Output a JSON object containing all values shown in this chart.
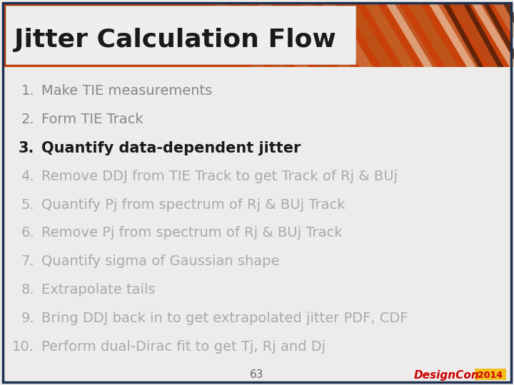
{
  "title": "Jitter Calculation Flow",
  "title_color": "#1a1a1a",
  "title_fontsize": 26,
  "background_color": "#edecea",
  "header_orange": "#c8400a",
  "header_stripe_light": "#d4b090",
  "header_stripe_dark": "#b83808",
  "border_color": "#1c3050",
  "title_box_color": "#f0eeec",
  "items": [
    {
      "num": "1.",
      "text": "Make TIE measurements",
      "bold": false,
      "color": "#888888",
      "fontsize": 14
    },
    {
      "num": "2.",
      "text": "Form TIE Track",
      "bold": false,
      "color": "#888888",
      "fontsize": 14
    },
    {
      "num": "3.",
      "text": "Quantify data-dependent jitter",
      "bold": true,
      "color": "#1a1a1a",
      "fontsize": 15
    },
    {
      "num": "4.",
      "text": "Remove DDJ from TIE Track to get Track of Rj & BUj",
      "bold": false,
      "color": "#aaaaaa",
      "fontsize": 14
    },
    {
      "num": "5.",
      "text": "Quantify Pj from spectrum of Rj & BUj Track",
      "bold": false,
      "color": "#aaaaaa",
      "fontsize": 14
    },
    {
      "num": "6.",
      "text": "Remove Pj from spectrum of Rj & BUj Track",
      "bold": false,
      "color": "#aaaaaa",
      "fontsize": 14
    },
    {
      "num": "7.",
      "text": "Quantify sigma of Gaussian shape",
      "bold": false,
      "color": "#aaaaaa",
      "fontsize": 14
    },
    {
      "num": "8.",
      "text": "Extrapolate tails",
      "bold": false,
      "color": "#aaaaaa",
      "fontsize": 14
    },
    {
      "num": "9.",
      "text": "Bring DDJ back in to get extrapolated jitter PDF, CDF",
      "bold": false,
      "color": "#aaaaaa",
      "fontsize": 14
    },
    {
      "num": "10.",
      "text": "Perform dual-Dirac fit to get Tj, Rj and Dj",
      "bold": false,
      "color": "#aaaaaa",
      "fontsize": 14
    }
  ],
  "page_number": "63",
  "page_num_color": "#666666",
  "page_num_fontsize": 11,
  "logo_design": "DesignCon",
  "logo_year": "2014",
  "logo_color": "#cc0000",
  "logo_year_bg": "#f0c020"
}
